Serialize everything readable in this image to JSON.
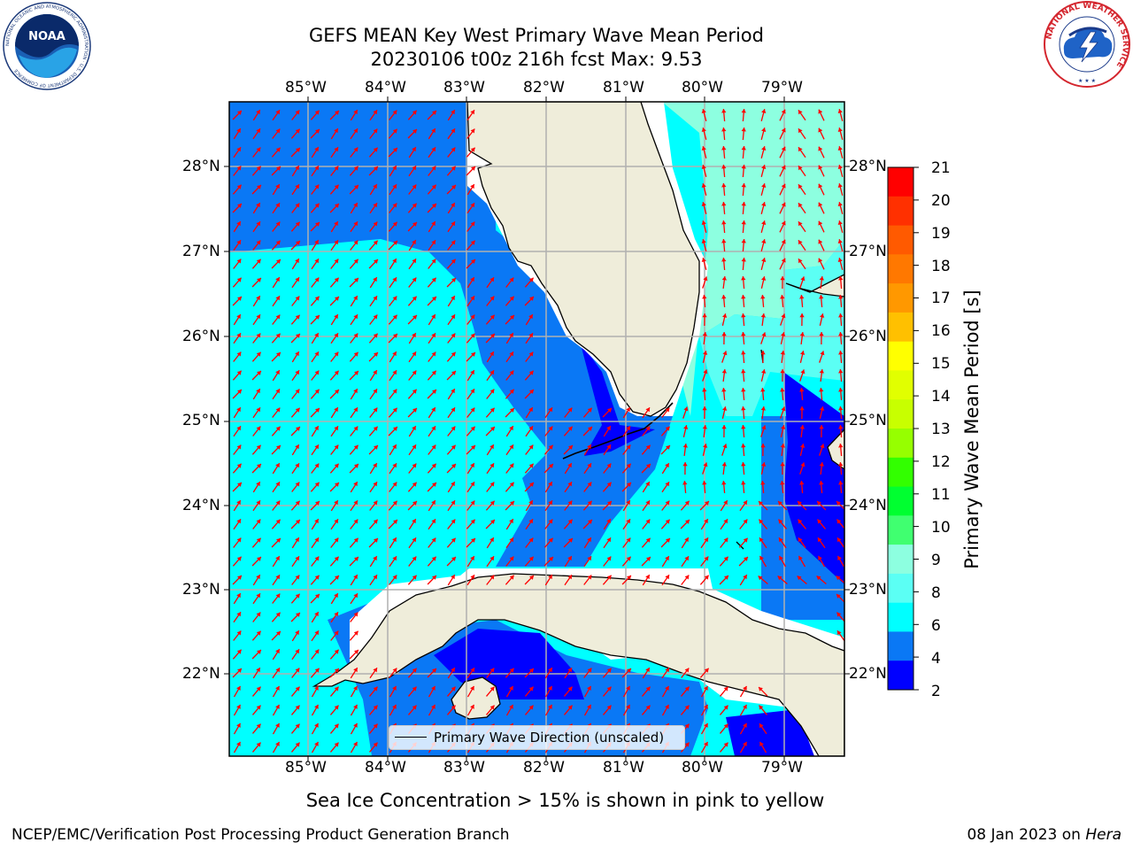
{
  "title": {
    "line1": "GEFS MEAN Key West Primary Wave Mean Period",
    "line2": "20230106 t00z 216h fcst   Max: 9.53"
  },
  "map": {
    "lon_labels": [
      "85°W",
      "84°W",
      "83°W",
      "82°W",
      "81°W",
      "80°W",
      "79°W"
    ],
    "lat_labels": [
      "28°N",
      "27°N",
      "26°N",
      "25°N",
      "24°N",
      "23°N",
      "22°N"
    ],
    "colors": {
      "land": "#efedda",
      "coast": "#000000",
      "grid": "#b0b0b0",
      "arrows": "#ff0000",
      "dark_blue": "#0000ff",
      "mid_blue": "#0a78f5",
      "cyan": "#00ffff",
      "light_cyan": "#5bfff4",
      "mint": "#8dffe0"
    },
    "legend_label": "Primary Wave Direction (unscaled)"
  },
  "colorbar": {
    "label": "Primary Wave Mean Period [s]",
    "ticks": [
      "21",
      "20",
      "19",
      "18",
      "17",
      "16",
      "15",
      "14",
      "13",
      "12",
      "11",
      "10",
      "9",
      "8",
      "6",
      "4",
      "2"
    ],
    "levels_top_to_bottom": [
      "#ff0000",
      "#ff3000",
      "#ff5a00",
      "#ff7800",
      "#ff9800",
      "#ffc000",
      "#ffff00",
      "#e1ff00",
      "#c8ff00",
      "#96ff00",
      "#32ff00",
      "#00ff30",
      "#40ff70",
      "#8dffe0",
      "#5bfff4",
      "#00ffff",
      "#0a78f5",
      "#0000ff"
    ]
  },
  "notes": {
    "sea_ice": "Sea Ice Concentration > 15% is shown in pink to yellow",
    "credit_left": "NCEP/EMC/Verification Post Processing Product Generation Branch",
    "credit_date": "08 Jan 2023 on ",
    "credit_machine": "Hera"
  },
  "logos": {
    "noaa": {
      "text": "NOAA",
      "icon": "noaa-logo-icon",
      "ring_text": "NATIONAL OCEANIC AND ATMOSPHERIC ADMINISTRATION · U.S. DEPARTMENT OF COMMERCE"
    },
    "nws": {
      "icon": "nws-logo-icon",
      "ring_text": "NATIONAL WEATHER SERVICE"
    }
  }
}
